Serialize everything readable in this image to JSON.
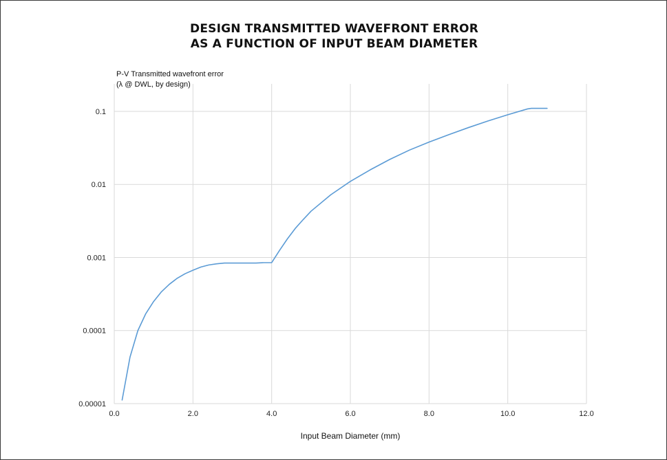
{
  "chart_data": {
    "type": "line",
    "title_lines": [
      "DESIGN TRANSMITTED WAVEFRONT ERROR",
      "AS A FUNCTION OF INPUT BEAM DIAMETER"
    ],
    "ylabel_lines": [
      "P-V Transmitted wavefront error",
      "(λ @ DWL, by design)"
    ],
    "xlabel": "Input Beam Diameter (mm)",
    "xlim": [
      0,
      12
    ],
    "x_ticks": [
      0,
      2,
      4,
      6,
      8,
      10,
      12
    ],
    "x_tick_labels": [
      "0.0",
      "2.0",
      "4.0",
      "6.0",
      "8.0",
      "10.0",
      "12.0"
    ],
    "y_scale": "log",
    "ylim": [
      1e-05,
      0.2
    ],
    "y_ticks": [
      1e-05,
      0.0001,
      0.001,
      0.01,
      0.1
    ],
    "y_tick_labels": [
      "0.00001",
      "0.0001",
      "0.001",
      "0.01",
      "0.1"
    ],
    "grid": true,
    "line_color": "#5b9bd5",
    "series": [
      {
        "x": [
          0.2,
          0.4,
          0.6,
          0.8,
          1.0,
          1.2,
          1.4,
          1.6,
          1.8,
          2.0,
          2.2,
          2.4,
          2.6,
          2.8,
          3.0,
          3.2,
          3.4,
          3.6,
          3.8,
          4.0,
          4.2,
          4.4,
          4.6,
          4.8,
          5.0,
          5.5,
          6.0,
          6.5,
          7.0,
          7.5,
          8.0,
          8.5,
          9.0,
          9.5,
          10.0,
          10.5,
          10.6,
          11.0
        ],
        "y": [
          1.12e-05,
          4.33e-05,
          0.0001,
          0.00017,
          0.00025,
          0.00034,
          0.00043,
          0.00052,
          0.0006,
          0.00067,
          0.00074,
          0.00079,
          0.00082,
          0.00084,
          0.00084,
          0.00084,
          0.00084,
          0.00084,
          0.00085,
          0.00085,
          0.00125,
          0.0018,
          0.0025,
          0.0033,
          0.0043,
          0.0072,
          0.011,
          0.0158,
          0.022,
          0.0295,
          0.038,
          0.048,
          0.06,
          0.074,
          0.09,
          0.108,
          0.11,
          0.11
        ]
      }
    ]
  }
}
